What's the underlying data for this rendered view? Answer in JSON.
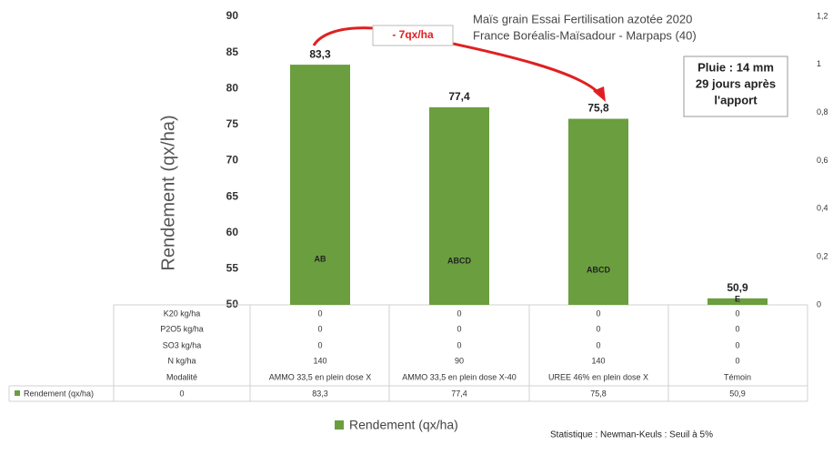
{
  "chart_data": {
    "type": "bar",
    "title": "Maïs grain Essai  Fertilisation azotée  2020",
    "subtitle": "France Boréalis-Maïsadour - Marpaps  (40)",
    "y_label": "Rendement (qx/ha)",
    "annotation": "- 7qx/ha",
    "note_box": [
      "Pluie : 14 mm",
      "29 jours après",
      "l'apport"
    ],
    "footnote": "Statistique : Newman-Keuls : Seuil à 5%",
    "categories": [
      "AMMO 33,5 en plein dose X",
      "AMMO 33,5 en plein dose X-40",
      "UREE 46% en plein dose X",
      "Témoin"
    ],
    "series": [
      {
        "name": "Rendement (qx/ha)",
        "color": "#6a9e3f",
        "values": [
          83.3,
          77.4,
          75.8,
          50.9
        ],
        "value_labels": [
          "83,3",
          "77,4",
          "75,8",
          "50,9"
        ],
        "letters": [
          "AB",
          "ABCD",
          "ABCD",
          "E"
        ]
      }
    ],
    "ylim": [
      50,
      90
    ],
    "yticks": [
      50,
      55,
      60,
      65,
      70,
      75,
      80,
      85,
      90
    ],
    "y2lim": [
      0,
      1.2
    ],
    "y2ticks": [
      0,
      {
        "value": 0.2,
        "label": "0,2"
      },
      {
        "value": 0.4,
        "label": "0,4"
      },
      {
        "value": 0.6,
        "label": "0,6"
      },
      {
        "value": 0.8,
        "label": "0,8"
      },
      1,
      {
        "value": 1.2,
        "label": "1,2"
      }
    ],
    "table": {
      "rows": [
        {
          "label": "K20 kg/ha",
          "values": [
            0,
            0,
            0,
            0
          ]
        },
        {
          "label": "P2O5 kg/ha",
          "values": [
            0,
            0,
            0,
            0
          ]
        },
        {
          "label": "SO3 kg/ha",
          "values": [
            0,
            0,
            0,
            0
          ]
        },
        {
          "label": "N kg/ha",
          "values": [
            140,
            90,
            140,
            0
          ]
        }
      ],
      "category_row_label": "Modalité",
      "series_row_first": 0
    },
    "legend": "bottom"
  }
}
